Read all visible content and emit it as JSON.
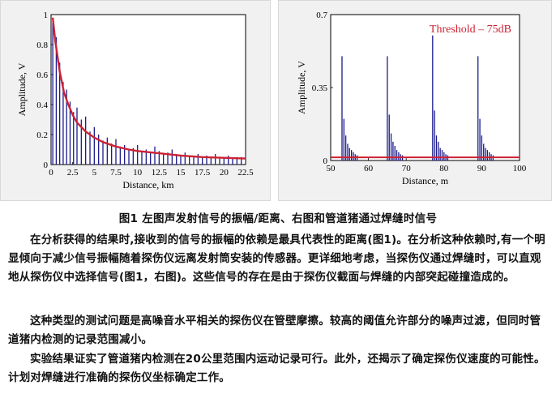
{
  "chart_data": [
    {
      "type": "bar",
      "title": "",
      "xlabel": "Distance, km",
      "ylabel": "Amplitude, V",
      "xlim": [
        0,
        22.5
      ],
      "ylim": [
        0,
        1
      ],
      "x_ticks": [
        "0",
        "2.5",
        "5",
        "7.5",
        "10",
        "12.5",
        "15",
        "17.5",
        "20",
        "22.5"
      ],
      "y_ticks": [
        "0",
        "0.2",
        "0.4",
        "0.6",
        "0.8",
        "1"
      ],
      "series": [
        {
          "kind": "bars",
          "color": "#1a1a8c",
          "x": [
            0.2,
            0.6,
            1.0,
            1.4,
            1.8,
            2.2,
            2.6,
            3.0,
            3.5,
            4.0,
            4.5,
            5.0,
            5.5,
            6.0,
            6.5,
            7.0,
            7.5,
            8.0,
            8.5,
            9.0,
            9.5,
            10.0,
            10.5,
            11.0,
            11.5,
            12.0,
            12.5,
            13.0,
            13.5,
            14.0,
            14.5,
            15.0,
            15.5,
            16.0,
            16.5,
            17.0,
            17.5,
            18.0,
            18.5,
            19.0,
            19.5,
            20.0,
            20.5,
            21.0,
            21.5,
            22.0
          ],
          "values": [
            0.95,
            0.85,
            0.68,
            0.55,
            0.5,
            0.42,
            0.35,
            0.38,
            0.3,
            0.32,
            0.22,
            0.25,
            0.2,
            0.16,
            0.18,
            0.14,
            0.17,
            0.12,
            0.13,
            0.1,
            0.11,
            0.13,
            0.09,
            0.1,
            0.08,
            0.12,
            0.09,
            0.07,
            0.08,
            0.1,
            0.07,
            0.06,
            0.08,
            0.06,
            0.05,
            0.07,
            0.05,
            0.06,
            0.05,
            0.07,
            0.04,
            0.05,
            0.06,
            0.04,
            0.05,
            0.05
          ]
        },
        {
          "kind": "line",
          "color": "#cc2233",
          "x": [
            0.2,
            0.5,
            1.0,
            1.5,
            2.0,
            2.5,
            3.0,
            4.0,
            5.0,
            6.0,
            7.5,
            9.0,
            10.0,
            12.5,
            15.0,
            17.5,
            20.0,
            22.5
          ],
          "values": [
            0.98,
            0.82,
            0.62,
            0.48,
            0.4,
            0.33,
            0.28,
            0.22,
            0.18,
            0.15,
            0.12,
            0.1,
            0.09,
            0.075,
            0.06,
            0.05,
            0.045,
            0.04
          ]
        }
      ]
    },
    {
      "type": "bar",
      "title": "",
      "xlabel": "Distance, m",
      "ylabel": "Amplitude, V",
      "xlim": [
        50,
        100
      ],
      "ylim": [
        0,
        0.7
      ],
      "x_ticks": [
        "50",
        "60",
        "70",
        "80",
        "90",
        "100"
      ],
      "y_ticks": [
        "0",
        "0.35",
        "0.7"
      ],
      "annotation": "Threshold – 75dB",
      "threshold": 0.015,
      "series": [
        {
          "kind": "bars",
          "color": "#1a1a8c",
          "x": [
            53,
            53.5,
            54,
            54.5,
            55,
            55.5,
            56,
            56.5,
            57,
            65,
            65.5,
            66,
            66.5,
            67,
            67.5,
            68,
            68.5,
            69,
            77,
            77.5,
            78,
            78.5,
            79,
            79.5,
            80,
            80.5,
            81,
            89,
            89.5,
            90,
            90.5,
            91,
            91.5,
            92,
            92.5,
            93
          ],
          "values": [
            0.5,
            0.2,
            0.12,
            0.08,
            0.06,
            0.05,
            0.04,
            0.03,
            0.025,
            0.5,
            0.22,
            0.13,
            0.09,
            0.07,
            0.05,
            0.04,
            0.03,
            0.025,
            0.6,
            0.24,
            0.12,
            0.09,
            0.06,
            0.05,
            0.04,
            0.03,
            0.025,
            0.5,
            0.2,
            0.12,
            0.08,
            0.06,
            0.05,
            0.04,
            0.03,
            0.025
          ]
        }
      ]
    }
  ],
  "caption": "图1 左图声发射信号的振幅/距离、右图和管道猪通过焊缝时信号",
  "paragraphs": [
    "在分析获得的结果时,接收到的信号的振幅的依赖是最具代表性的距离(图1)。在分析这种依赖时,有一个明显倾向于减少信号振幅随着探伤仪远离发射筒安装的传感器。更详细地考虑，当探伤仪通过焊缝时，可以直观地从探伤仪中选择信号(图1，右图)。这些信号的存在是由于探伤仪截面与焊缝的内部突起碰撞造成的。",
    "这种类型的测试问题是高噪音水平相关的探伤仪在管壁摩擦。较高的阈值允许部分的噪声过滤，但同时管道猪内检测的记录范围减小。",
    "实验结果证实了管道猪内检测在20公里范围内运动记录可行。此外，还揭示了确定探伤仪速度的可能性。计划对焊缝进行准确的探伤仪坐标确定工作。"
  ]
}
